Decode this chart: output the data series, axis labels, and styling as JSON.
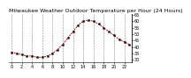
{
  "title": "Milwaukee Weather Outdoor Temperature per Hour (24 Hours)",
  "hours": [
    0,
    1,
    2,
    3,
    4,
    5,
    6,
    7,
    8,
    9,
    10,
    11,
    12,
    13,
    14,
    15,
    16,
    17,
    18,
    19,
    20,
    21,
    22,
    23
  ],
  "temps": [
    36,
    35,
    34,
    33,
    33,
    32,
    32,
    33,
    35,
    38,
    42,
    47,
    52,
    57,
    60,
    61,
    60,
    58,
    55,
    52,
    49,
    46,
    44,
    42
  ],
  "line_color": "#cc0000",
  "marker_color": "#000000",
  "bg_color": "#ffffff",
  "grid_color": "#888888",
  "ylim": [
    28,
    66
  ],
  "yticks": [
    30,
    35,
    40,
    45,
    50,
    55,
    60,
    65
  ],
  "title_fontsize": 4.5,
  "tick_fontsize": 3.5
}
